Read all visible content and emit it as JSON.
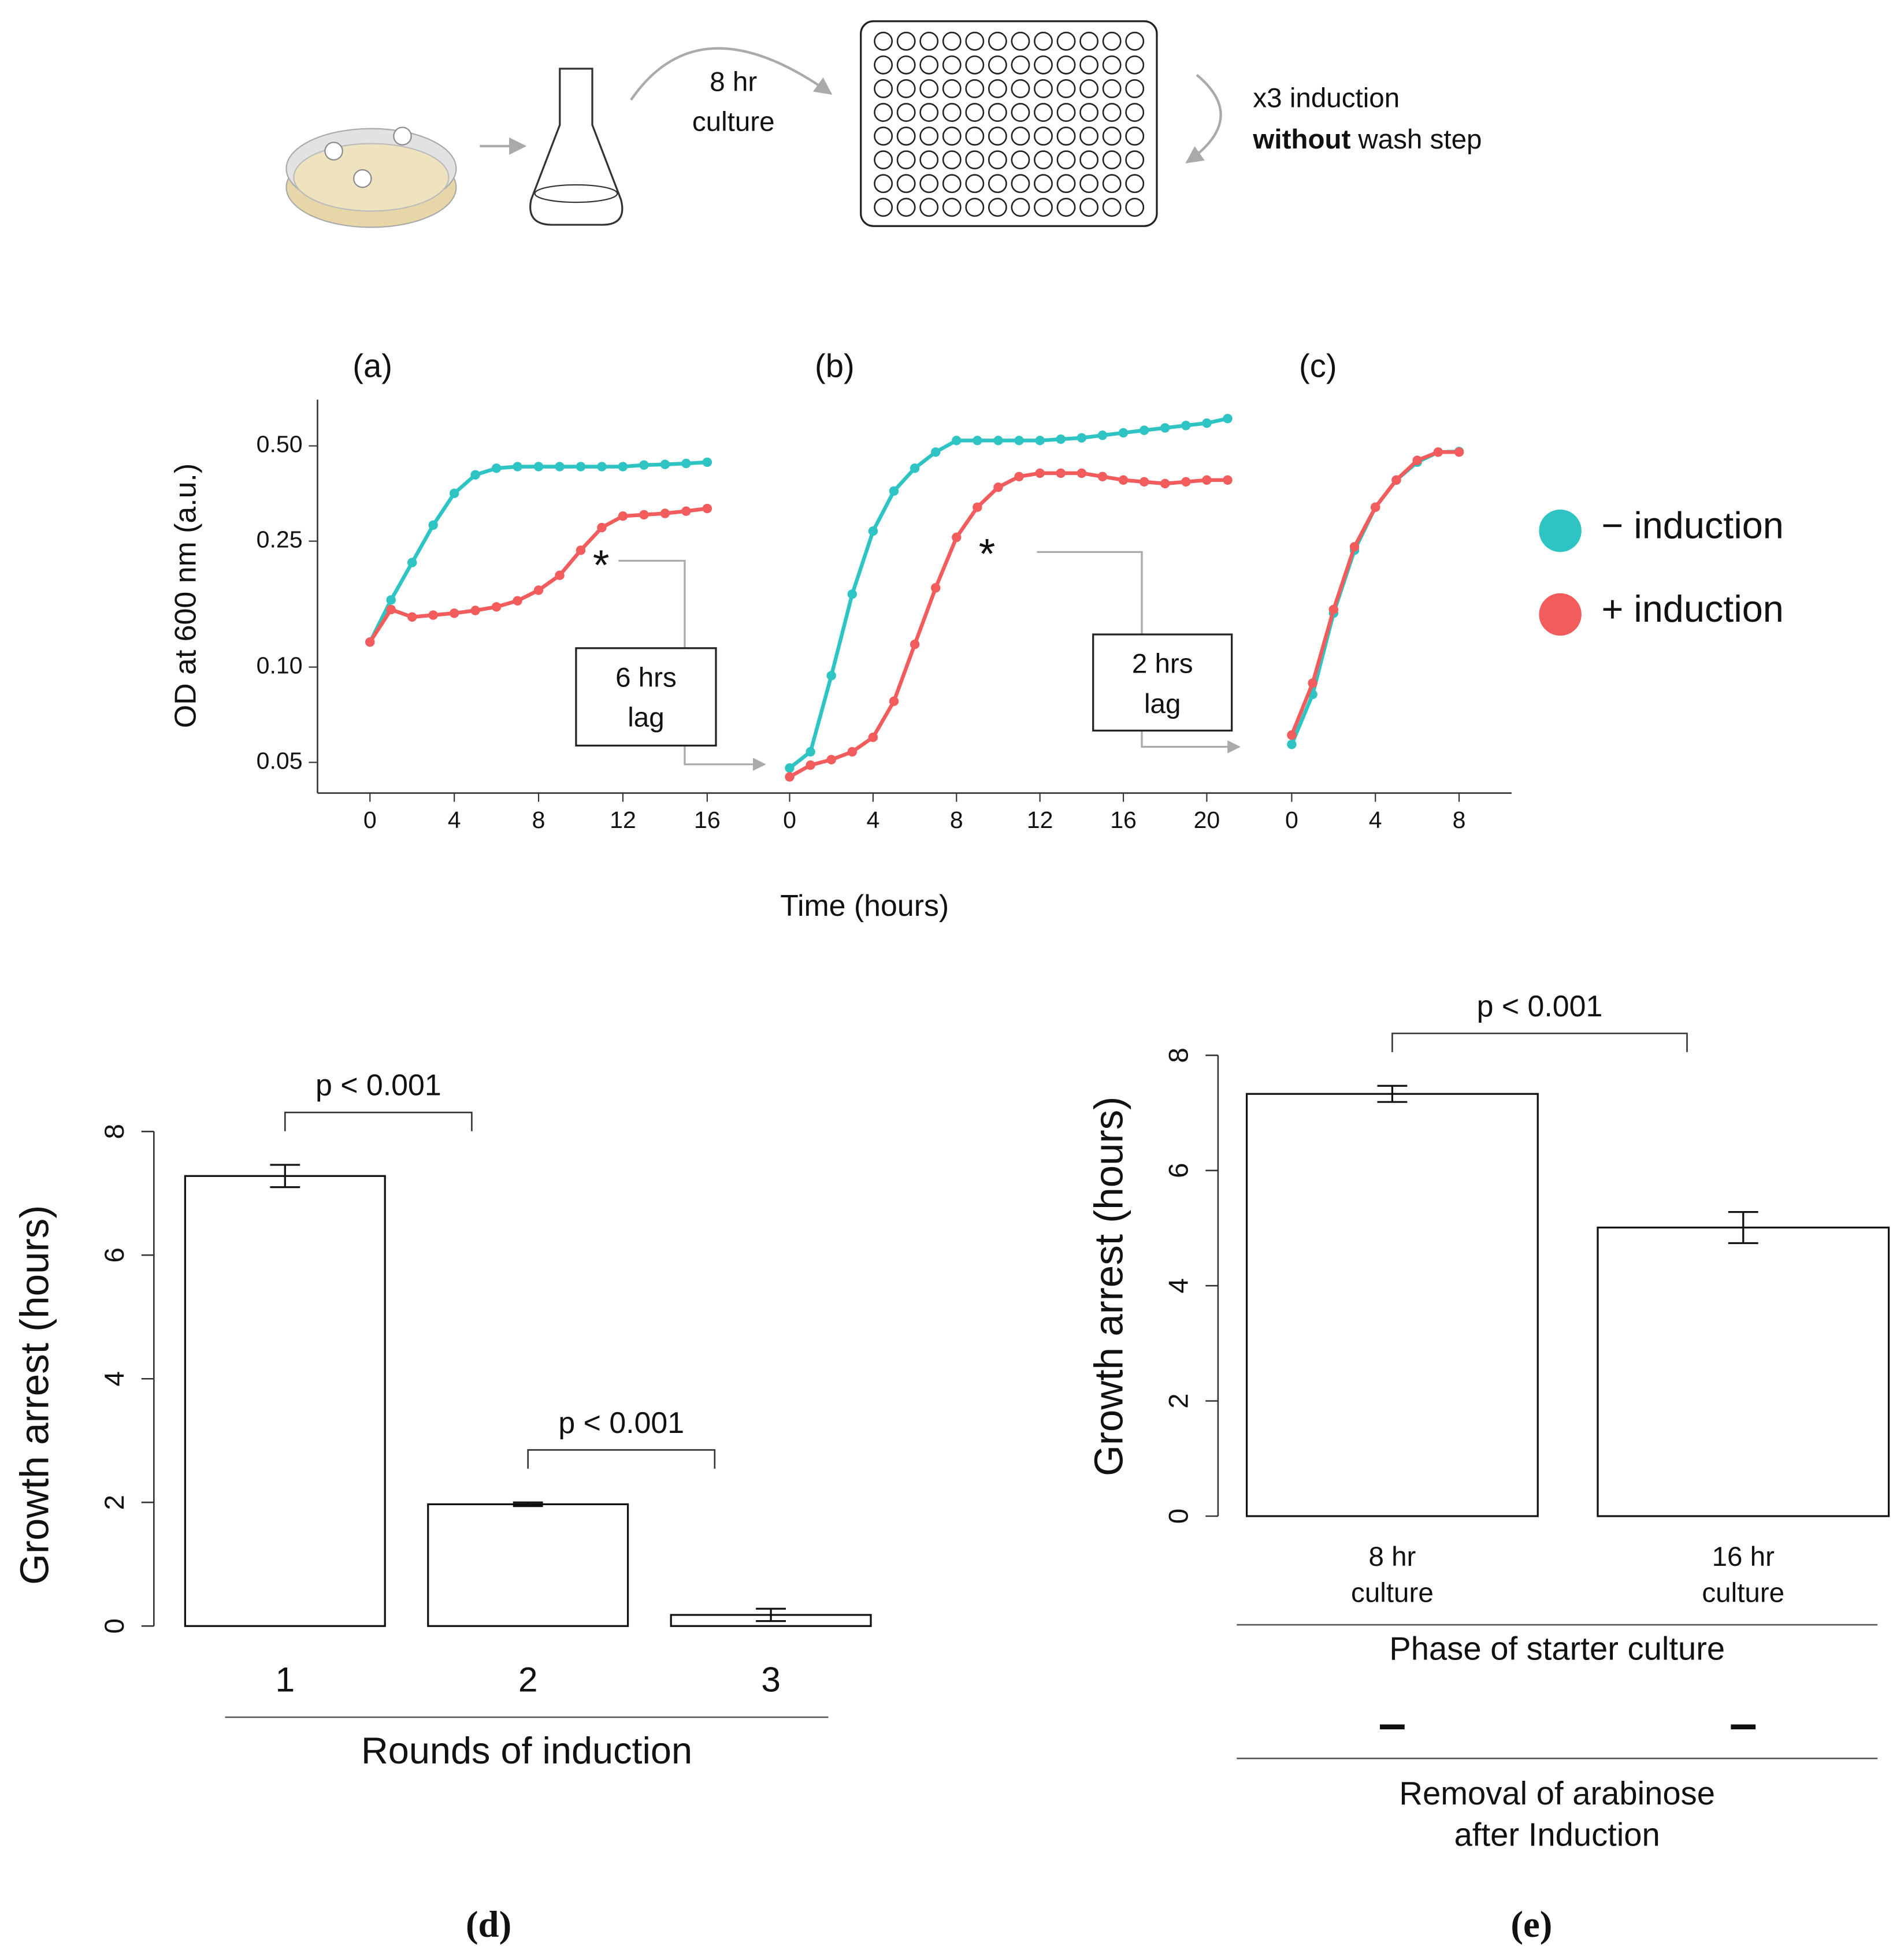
{
  "diagram": {
    "culture_label": [
      "8 hr",
      "culture"
    ],
    "induction_label": "x3 induction",
    "wash_label": {
      "bold": "without",
      "rest": "wash step"
    }
  },
  "chart_data": [
    {
      "type": "line",
      "ylabel": "OD at 600 nm (a.u.)",
      "xlabel": "Time (hours)",
      "log_y": true,
      "ylim": [
        0.04,
        0.7
      ],
      "yticks": [
        0.05,
        {
          "value": 0.1,
          "label": "0.10"
        },
        0.25,
        {
          "value": 0.5,
          "label": "0.50"
        }
      ],
      "series": [
        {
          "name": "− induction",
          "color": "#2ec4c4"
        },
        {
          "name": "+ induction",
          "color": "#f25c5c"
        }
      ],
      "panels": [
        {
          "label": "(a)",
          "xlim": [
            0,
            16
          ],
          "xticks": [
            0,
            4,
            8,
            12,
            16
          ],
          "x": [
            0,
            1,
            2,
            3,
            4,
            5,
            6,
            7,
            8,
            9,
            10,
            11,
            12,
            13,
            14,
            15,
            16
          ],
          "series": [
            {
              "values": [
                0.12,
                0.163,
                0.214,
                0.281,
                0.354,
                0.405,
                0.425,
                0.43,
                0.43,
                0.43,
                0.43,
                0.43,
                0.43,
                0.435,
                0.437,
                0.44,
                0.444
              ]
            },
            {
              "values": [
                0.12,
                0.152,
                0.144,
                0.146,
                0.148,
                0.151,
                0.155,
                0.162,
                0.175,
                0.195,
                0.234,
                0.276,
                0.3,
                0.303,
                0.306,
                0.311,
                0.317
              ]
            }
          ],
          "annotation": {
            "marker": "*",
            "box": [
              "6 hrs",
              "lag"
            ]
          }
        },
        {
          "label": "(b)",
          "xlim": [
            0,
            20
          ],
          "xticks": [
            0,
            4,
            8,
            12,
            16,
            20
          ],
          "x": [
            0,
            1,
            2,
            3,
            4,
            5,
            6,
            7,
            8,
            9,
            10,
            11,
            12,
            13,
            14,
            15,
            16,
            17,
            18,
            19,
            20,
            21
          ],
          "series": [
            {
              "values": [
                0.048,
                0.054,
                0.094,
                0.17,
                0.269,
                0.36,
                0.425,
                0.478,
                0.52,
                0.52,
                0.52,
                0.52,
                0.52,
                0.525,
                0.53,
                0.54,
                0.55,
                0.56,
                0.57,
                0.58,
                0.59,
                0.61
              ]
            },
            {
              "values": [
                0.045,
                0.049,
                0.051,
                0.054,
                0.06,
                0.078,
                0.118,
                0.178,
                0.257,
                0.32,
                0.37,
                0.4,
                0.41,
                0.41,
                0.41,
                0.4,
                0.39,
                0.385,
                0.38,
                0.385,
                0.39,
                0.39
              ]
            }
          ],
          "annotation": {
            "marker": "*",
            "box": [
              "2 hrs",
              "lag"
            ]
          }
        },
        {
          "label": "(c)",
          "xlim": [
            0,
            8
          ],
          "xticks": [
            0,
            4,
            8
          ],
          "x": [
            0,
            1,
            2,
            3,
            4,
            5,
            6,
            7,
            8
          ],
          "series": [
            {
              "values": [
                0.057,
                0.082,
                0.148,
                0.234,
                0.32,
                0.39,
                0.444,
                0.478,
                0.48
              ]
            },
            {
              "values": [
                0.061,
                0.089,
                0.152,
                0.24,
                0.32,
                0.39,
                0.45,
                0.478,
                0.478
              ]
            }
          ]
        }
      ]
    },
    {
      "type": "bar",
      "panel_label": "(d)",
      "ylabel": "Growth arrest (hours)",
      "xlabel": "Rounds of induction",
      "categories": [
        "1",
        "2",
        "3"
      ],
      "values": [
        7.28,
        1.97,
        0.18
      ],
      "errors": [
        0.18,
        0.03,
        0.1
      ],
      "ylim": [
        0,
        8
      ],
      "yticks": [
        0,
        2,
        4,
        6,
        8
      ],
      "color": "#ffffff",
      "comparisons": [
        "p < 0.001",
        "p < 0.001"
      ]
    },
    {
      "type": "bar",
      "panel_label": "(e)",
      "ylabel": "Growth arrest (hours)",
      "xlabel": "Phase of starter culture",
      "categories": [
        [
          "8 hr",
          "culture"
        ],
        [
          "16 hr",
          "culture"
        ]
      ],
      "values": [
        7.33,
        5.01
      ],
      "errors": [
        0.14,
        0.27
      ],
      "ylim": [
        0,
        8
      ],
      "yticks": [
        0,
        2,
        4,
        6,
        8
      ],
      "color": "#ffffff",
      "comparisons": [
        "p < 0.001"
      ],
      "rows": [
        {
          "label": [
            "Removal of arabinose",
            "after Induction"
          ],
          "values": [
            "–",
            "–"
          ]
        }
      ]
    }
  ]
}
